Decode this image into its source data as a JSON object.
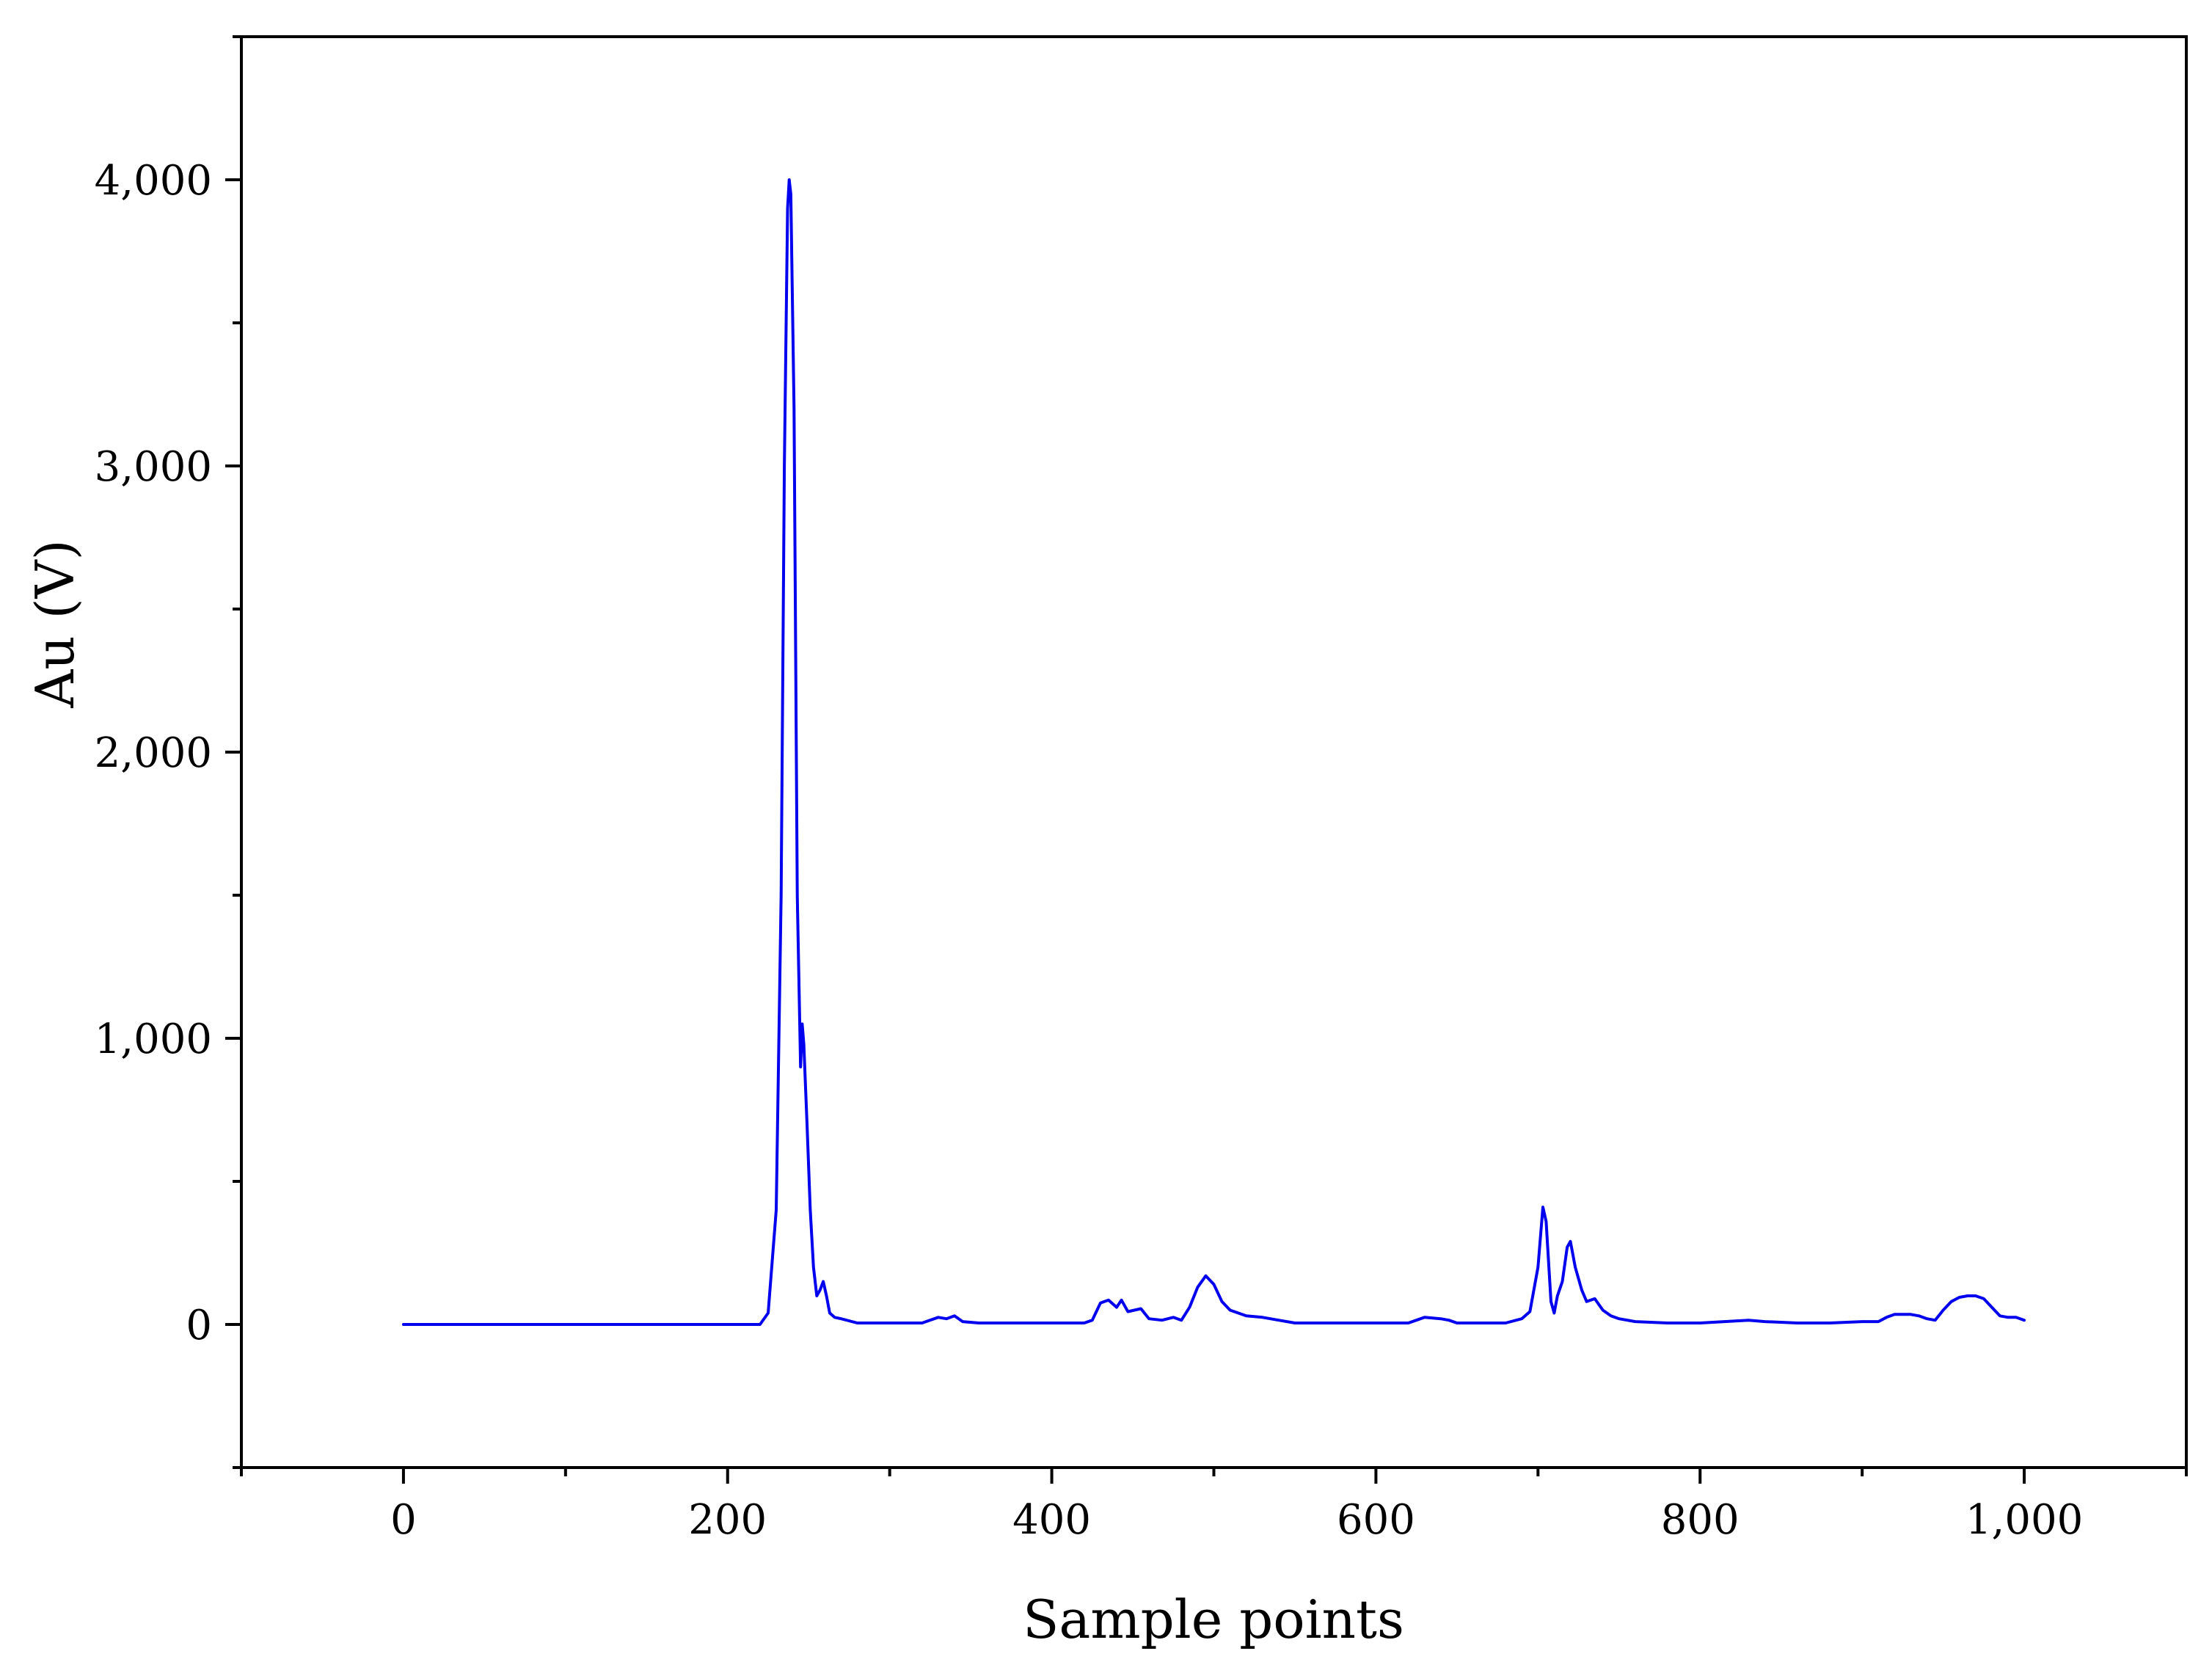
{
  "chart_data": {
    "type": "line",
    "title": "",
    "xlabel": "Sample points",
    "ylabel": "Au  (V)",
    "xlim": [
      -100,
      1100
    ],
    "ylim": [
      -500,
      4500
    ],
    "xticks": [
      0,
      200,
      400,
      600,
      800,
      1000
    ],
    "xtick_labels": [
      "0",
      "200",
      "400",
      "600",
      "800",
      "1,000"
    ],
    "yticks": [
      0,
      1000,
      2000,
      3000,
      4000
    ],
    "ytick_labels": [
      "0",
      "1,000",
      "2,000",
      "3,000",
      "4,000"
    ],
    "grid": false,
    "legend": "none",
    "series": [
      {
        "color": "#0000ee",
        "x": [
          0,
          20,
          200,
          220,
          225,
          230,
          233,
          235,
          237,
          238,
          239,
          241,
          243,
          245,
          246,
          247,
          249,
          251,
          253,
          255,
          257,
          259,
          261,
          263,
          266,
          270,
          280,
          290,
          300,
          320,
          330,
          335,
          340,
          345,
          355,
          370,
          400,
          420,
          425,
          430,
          435,
          440,
          443,
          447,
          455,
          460,
          468,
          475,
          480,
          485,
          490,
          495,
          500,
          505,
          510,
          520,
          530,
          540,
          550,
          580,
          600,
          620,
          625,
          630,
          640,
          645,
          650,
          680,
          690,
          695,
          700,
          703,
          705,
          708,
          710,
          712,
          715,
          718,
          720,
          723,
          727,
          730,
          735,
          740,
          745,
          750,
          760,
          780,
          800,
          815,
          830,
          840,
          860,
          880,
          900,
          910,
          915,
          920,
          930,
          935,
          940,
          945,
          950,
          955,
          960,
          965,
          970,
          975,
          980,
          985,
          990,
          995,
          1000
        ],
        "y": [
          0,
          0,
          0,
          0,
          40,
          400,
          1500,
          3000,
          3900,
          4000,
          3950,
          3200,
          1500,
          900,
          1050,
          980,
          700,
          400,
          200,
          100,
          120,
          150,
          100,
          40,
          25,
          20,
          5,
          5,
          5,
          5,
          25,
          20,
          30,
          10,
          5,
          5,
          5,
          5,
          15,
          75,
          85,
          60,
          85,
          45,
          55,
          20,
          15,
          25,
          15,
          60,
          130,
          170,
          140,
          80,
          50,
          30,
          25,
          15,
          5,
          5,
          5,
          5,
          15,
          25,
          20,
          15,
          5,
          5,
          20,
          45,
          200,
          410,
          360,
          80,
          40,
          100,
          150,
          270,
          290,
          200,
          120,
          80,
          90,
          50,
          30,
          20,
          10,
          5,
          5,
          10,
          15,
          10,
          5,
          5,
          10,
          10,
          25,
          35,
          35,
          30,
          20,
          15,
          50,
          80,
          95,
          100,
          100,
          90,
          60,
          30,
          25,
          25,
          15
        ]
      }
    ]
  }
}
